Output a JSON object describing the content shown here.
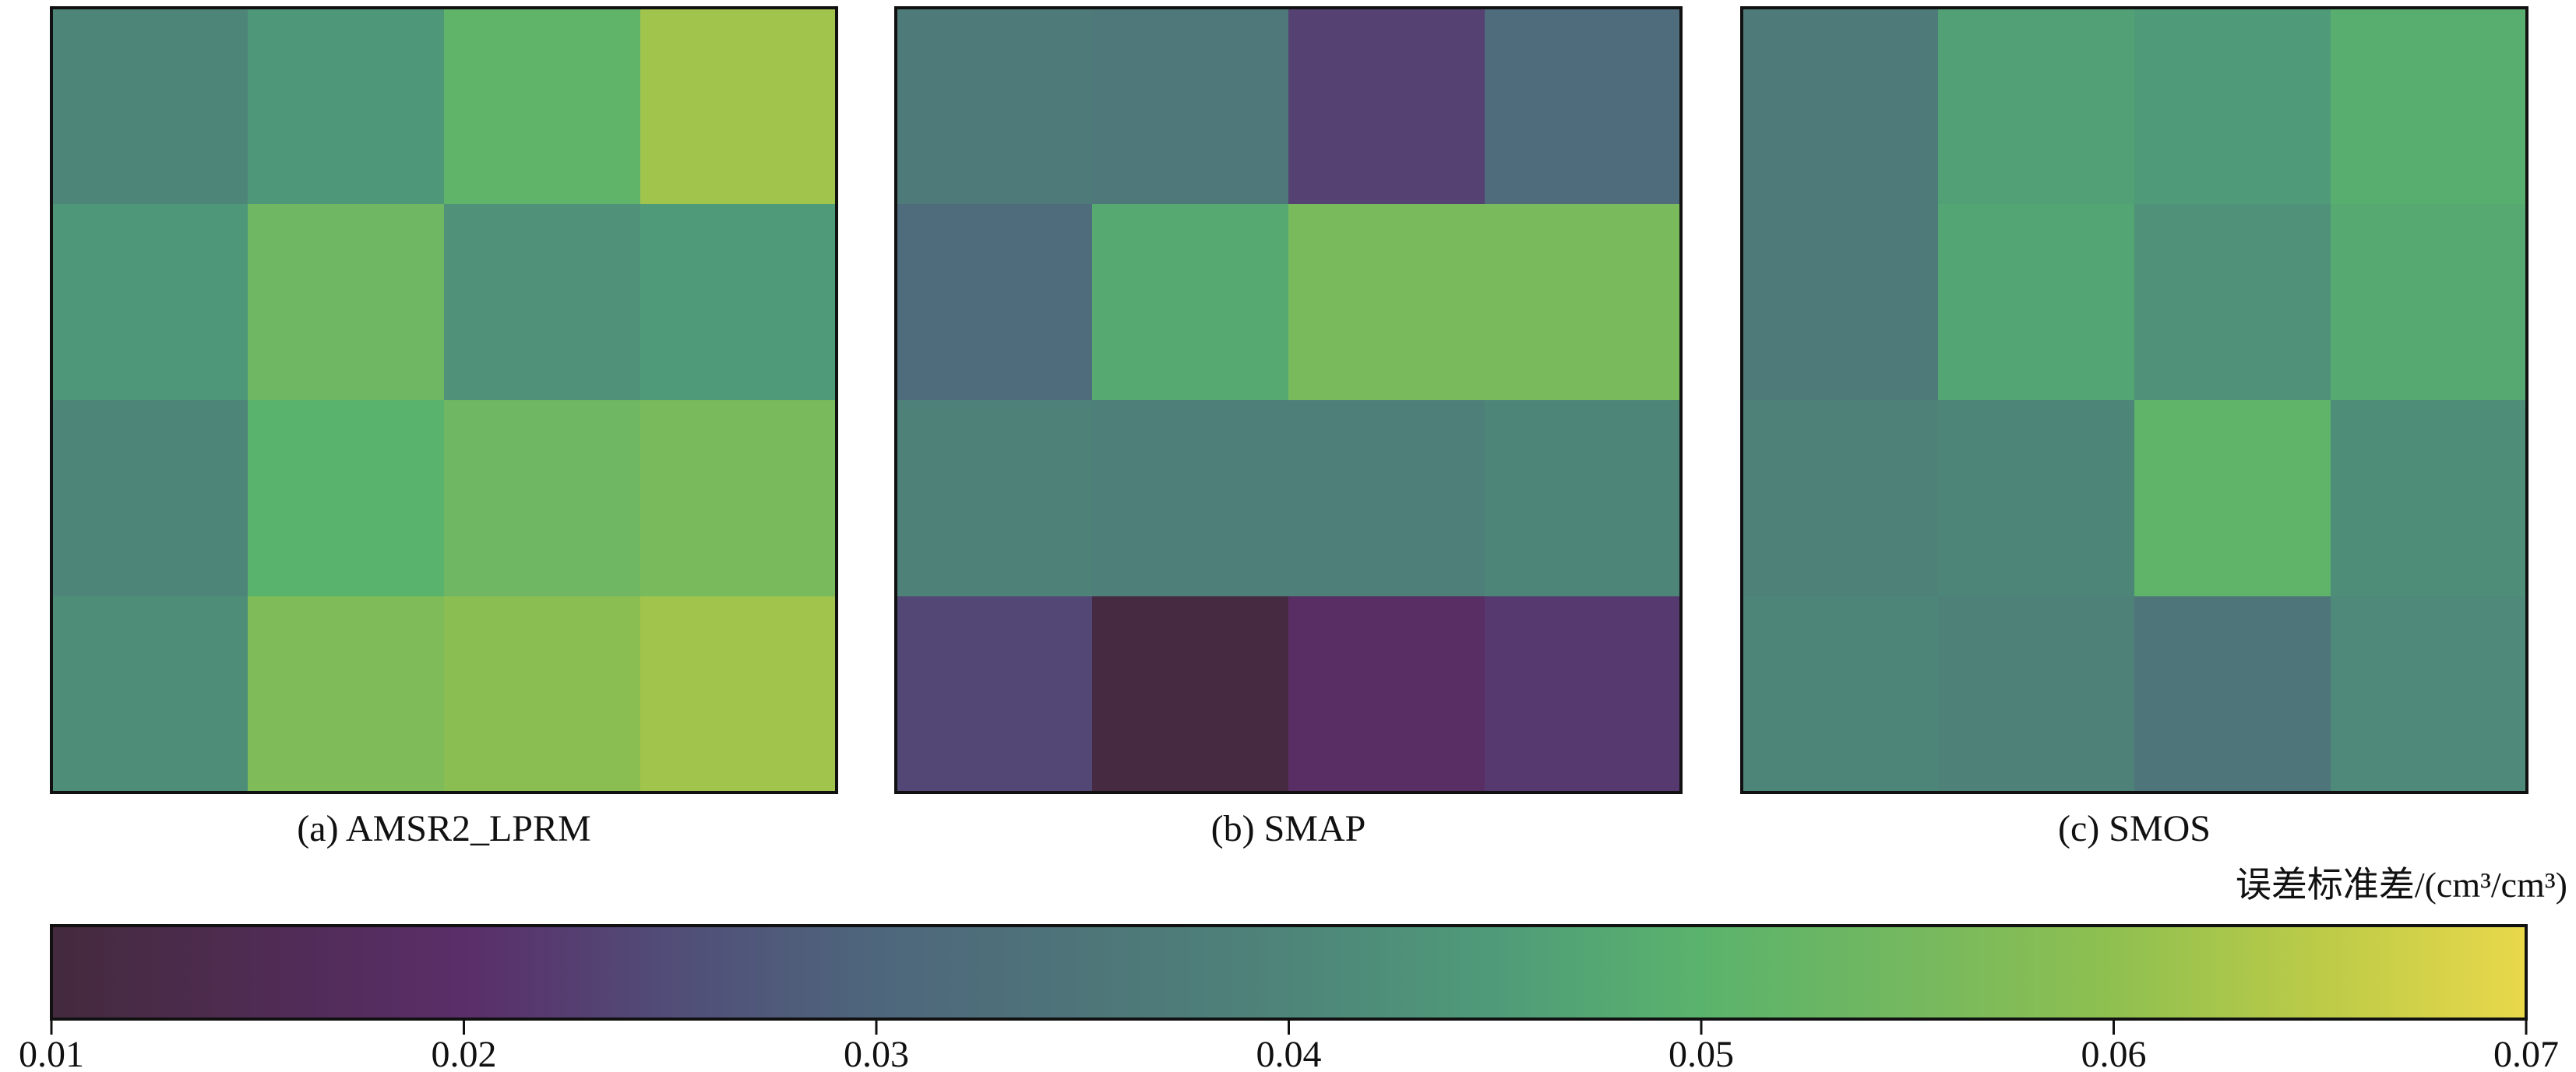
{
  "chart_data": {
    "type": "heatmap",
    "panels": [
      {
        "title": "(a) AMSR2_LPRM",
        "values": [
          [
            0.04,
            0.044,
            0.051,
            0.062
          ],
          [
            0.044,
            0.054,
            0.043,
            0.045
          ],
          [
            0.04,
            0.05,
            0.054,
            0.056
          ],
          [
            0.042,
            0.057,
            0.059,
            0.062
          ]
        ]
      },
      {
        "title": "(b) SMAP",
        "values": [
          [
            0.037,
            0.036,
            0.023,
            0.032
          ],
          [
            0.032,
            0.048,
            0.056,
            0.056
          ],
          [
            0.039,
            0.038,
            0.038,
            0.04
          ],
          [
            0.024,
            0.011,
            0.019,
            0.022
          ]
        ]
      },
      {
        "title": "(c) SMOS",
        "values": [
          [
            0.037,
            0.046,
            0.045,
            0.049
          ],
          [
            0.037,
            0.047,
            0.043,
            0.048
          ],
          [
            0.039,
            0.04,
            0.051,
            0.042
          ],
          [
            0.04,
            0.039,
            0.035,
            0.041
          ]
        ]
      }
    ],
    "colorbar": {
      "label": "误差标准差/(cm³/cm³)",
      "range": [
        0.01,
        0.07
      ],
      "ticks": [
        "0.01",
        "0.02",
        "0.03",
        "0.04",
        "0.05",
        "0.06",
        "0.07"
      ],
      "colormap": [
        [
          0.01,
          "#442a3d"
        ],
        [
          0.02,
          "#5a2e69"
        ],
        [
          0.025,
          "#514d78"
        ],
        [
          0.03,
          "#4e667c"
        ],
        [
          0.035,
          "#4e7579"
        ],
        [
          0.04,
          "#4e8579"
        ],
        [
          0.045,
          "#4f9b79"
        ],
        [
          0.05,
          "#5ab36c"
        ],
        [
          0.055,
          "#74b85f"
        ],
        [
          0.06,
          "#8fc050"
        ],
        [
          0.065,
          "#bccb48"
        ],
        [
          0.07,
          "#e9d84a"
        ]
      ]
    }
  }
}
